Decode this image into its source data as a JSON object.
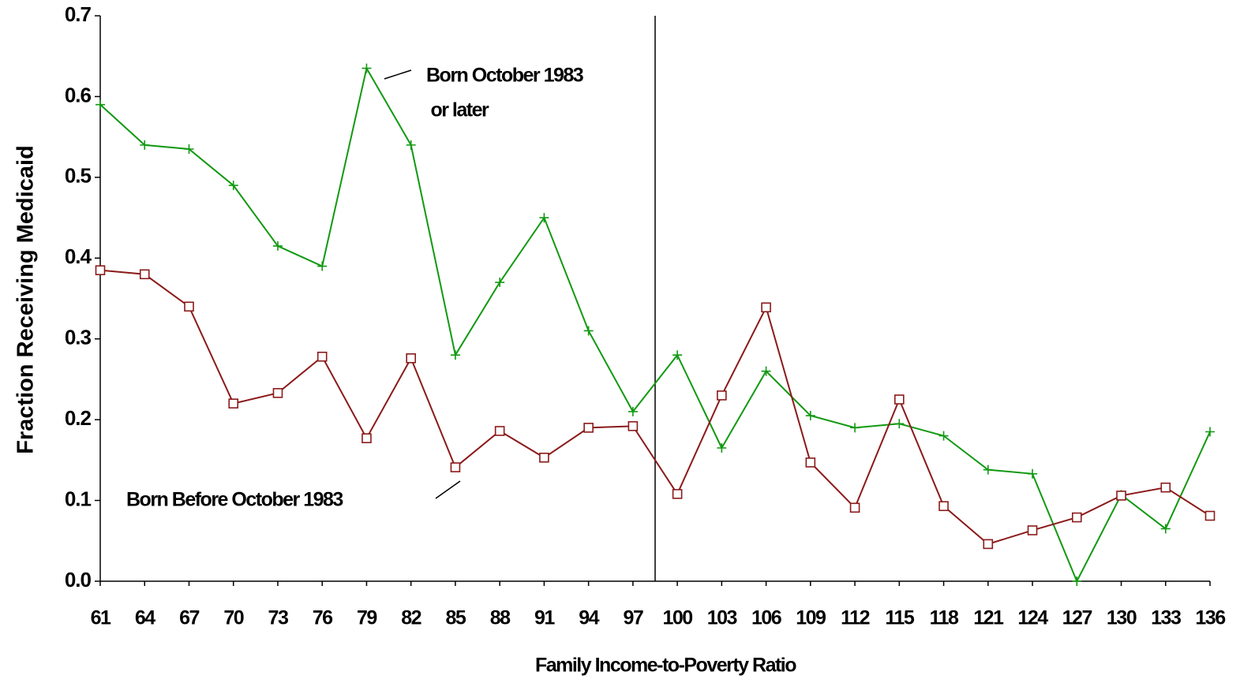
{
  "chart_data": {
    "type": "line",
    "x_label": "Family Income-to-Poverty Ratio",
    "y_label": "Fraction Receiving Medicaid",
    "x": [
      61,
      64,
      67,
      70,
      73,
      76,
      79,
      82,
      85,
      88,
      91,
      94,
      97,
      100,
      103,
      106,
      109,
      112,
      115,
      118,
      121,
      124,
      127,
      130,
      133,
      136
    ],
    "xlim": [
      61,
      136
    ],
    "xticks": [
      61,
      64,
      67,
      70,
      73,
      76,
      79,
      82,
      85,
      88,
      91,
      94,
      97,
      100,
      103,
      106,
      109,
      112,
      115,
      118,
      121,
      124,
      127,
      130,
      133,
      136
    ],
    "ylim": [
      0,
      0.7
    ],
    "yticks": [
      {
        "value": 0,
        "label": "0.0"
      },
      0.1,
      0.2,
      0.3,
      0.4,
      0.5,
      0.6,
      0.7
    ],
    "cutoff_x": 98.5,
    "series": [
      {
        "name": "Born October 1983 or later",
        "color": "#119911",
        "marker": "plus",
        "values": [
          0.59,
          0.54,
          0.535,
          0.49,
          0.415,
          0.39,
          0.635,
          0.54,
          0.28,
          0.37,
          0.45,
          0.31,
          0.21,
          0.28,
          0.165,
          0.26,
          0.205,
          0.19,
          0.195,
          0.18,
          0.138,
          0.133,
          0.0,
          0.107,
          0.065,
          0.185
        ]
      },
      {
        "name": "Born Before October 1983",
        "color": "#8b1a1a",
        "marker": "square",
        "values": [
          0.385,
          0.38,
          0.34,
          0.22,
          0.233,
          0.278,
          0.177,
          0.276,
          0.141,
          0.186,
          0.153,
          0.19,
          0.192,
          0.108,
          0.23,
          0.339,
          0.147,
          0.091,
          0.225,
          0.093,
          0.046,
          0.063,
          0.079,
          0.106,
          0.116,
          0.081
        ]
      }
    ],
    "annotations": [
      {
        "lines": [
          "Born October 1983",
          " or later"
        ]
      },
      {
        "lines": [
          "Born Before October 1983"
        ]
      }
    ]
  }
}
